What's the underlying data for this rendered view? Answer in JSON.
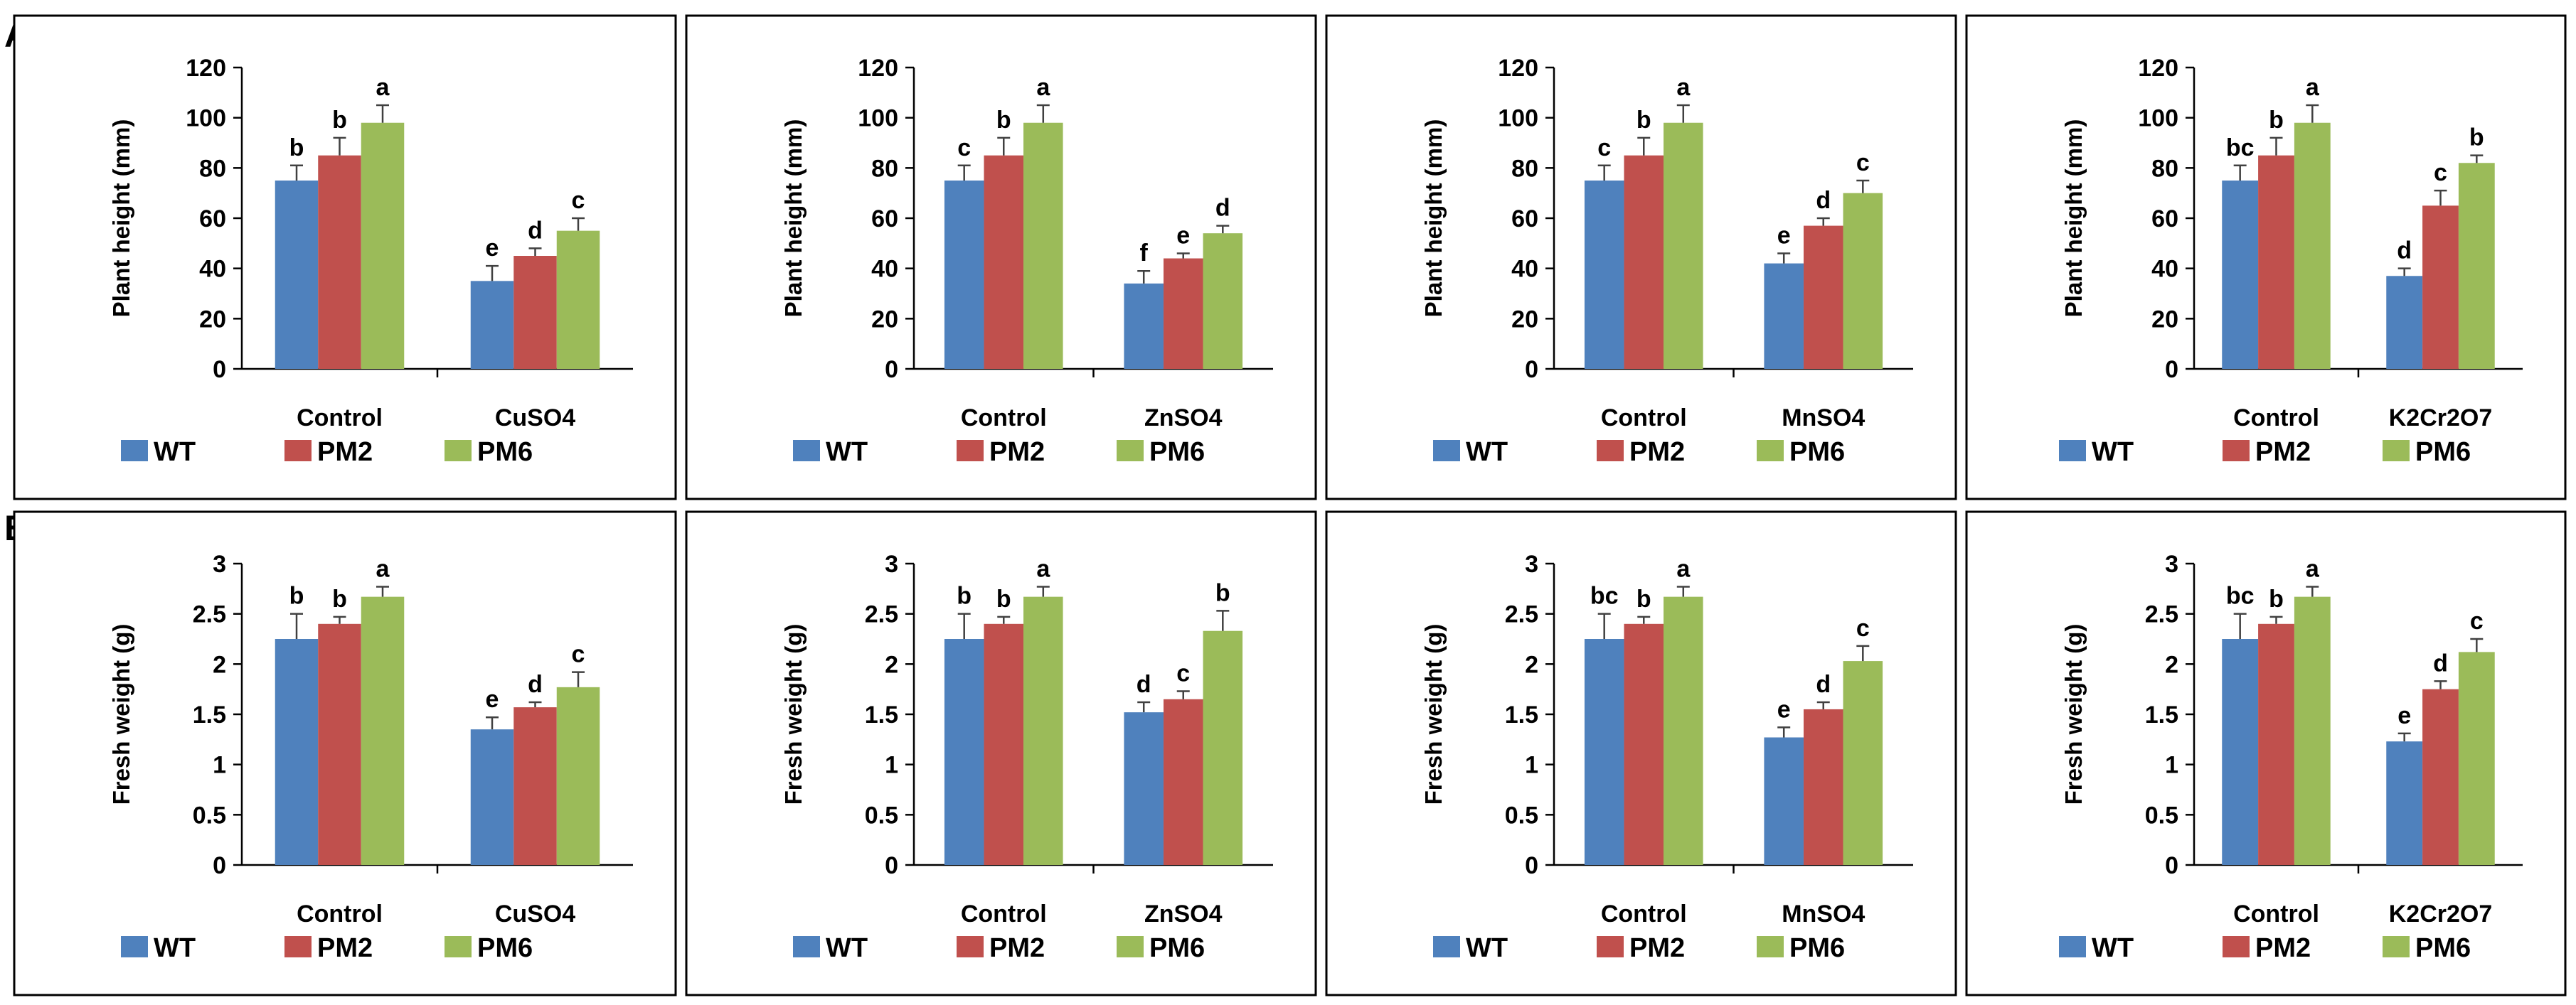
{
  "figure": {
    "row_labels": [
      "A",
      "B"
    ],
    "legend": [
      "WT",
      "PM2",
      "PM6"
    ],
    "series_colors": [
      "#4F81BD",
      "#C0504D",
      "#9BBB59"
    ],
    "error_bar_color": "#404040",
    "frame_color": "#000000"
  },
  "chart_data": [
    {
      "id": "A1",
      "type": "bar",
      "ylabel": "Plant height (mm)",
      "categories": [
        "Control",
        "CuSO4"
      ],
      "ylim": [
        0,
        120
      ],
      "yticks": [
        "0",
        "20",
        "40",
        "60",
        "80",
        "100",
        "120"
      ],
      "series": [
        {
          "name": "WT",
          "values": [
            75,
            35
          ],
          "errors": [
            6,
            6
          ],
          "letters": [
            "b",
            "e"
          ]
        },
        {
          "name": "PM2",
          "values": [
            85,
            45
          ],
          "errors": [
            7,
            3
          ],
          "letters": [
            "b",
            "d"
          ]
        },
        {
          "name": "PM6",
          "values": [
            98,
            55
          ],
          "errors": [
            7,
            5
          ],
          "letters": [
            "a",
            "c"
          ]
        }
      ]
    },
    {
      "id": "A2",
      "type": "bar",
      "ylabel": "Plant height (mm)",
      "categories": [
        "Control",
        "ZnSO4"
      ],
      "ylim": [
        0,
        120
      ],
      "yticks": [
        "0",
        "20",
        "40",
        "60",
        "80",
        "100",
        "120"
      ],
      "series": [
        {
          "name": "WT",
          "values": [
            75,
            34
          ],
          "errors": [
            6,
            5
          ],
          "letters": [
            "c",
            "f"
          ]
        },
        {
          "name": "PM2",
          "values": [
            85,
            44
          ],
          "errors": [
            7,
            2
          ],
          "letters": [
            "b",
            "e"
          ]
        },
        {
          "name": "PM6",
          "values": [
            98,
            54
          ],
          "errors": [
            7,
            3
          ],
          "letters": [
            "a",
            "d"
          ]
        }
      ]
    },
    {
      "id": "A3",
      "type": "bar",
      "ylabel": "Plant height (mm)",
      "categories": [
        "Control",
        "MnSO4"
      ],
      "ylim": [
        0,
        120
      ],
      "yticks": [
        "0",
        "20",
        "40",
        "60",
        "80",
        "100",
        "120"
      ],
      "series": [
        {
          "name": "WT",
          "values": [
            75,
            42
          ],
          "errors": [
            6,
            4
          ],
          "letters": [
            "c",
            "e"
          ]
        },
        {
          "name": "PM2",
          "values": [
            85,
            57
          ],
          "errors": [
            7,
            3
          ],
          "letters": [
            "b",
            "d"
          ]
        },
        {
          "name": "PM6",
          "values": [
            98,
            70
          ],
          "errors": [
            7,
            5
          ],
          "letters": [
            "a",
            "c"
          ]
        }
      ]
    },
    {
      "id": "A4",
      "type": "bar",
      "ylabel": "Plant height (mm)",
      "categories": [
        "Control",
        "K2Cr2O7"
      ],
      "ylim": [
        0,
        120
      ],
      "yticks": [
        "0",
        "20",
        "40",
        "60",
        "80",
        "100",
        "120"
      ],
      "series": [
        {
          "name": "WT",
          "values": [
            75,
            37
          ],
          "errors": [
            6,
            3
          ],
          "letters": [
            "bc",
            "d"
          ]
        },
        {
          "name": "PM2",
          "values": [
            85,
            65
          ],
          "errors": [
            7,
            6
          ],
          "letters": [
            "b",
            "c"
          ]
        },
        {
          "name": "PM6",
          "values": [
            98,
            82
          ],
          "errors": [
            7,
            3
          ],
          "letters": [
            "a",
            "b"
          ]
        }
      ]
    },
    {
      "id": "B1",
      "type": "bar",
      "ylabel": "Fresh weight (g)",
      "categories": [
        "Control",
        "CuSO4"
      ],
      "ylim": [
        0,
        3
      ],
      "yticks": [
        "0",
        "0.5",
        "1",
        "1.5",
        "2",
        "2.5",
        "3"
      ],
      "series": [
        {
          "name": "WT",
          "values": [
            2.25,
            1.35
          ],
          "errors": [
            0.25,
            0.12
          ],
          "letters": [
            "b",
            "e"
          ]
        },
        {
          "name": "PM2",
          "values": [
            2.4,
            1.57
          ],
          "errors": [
            0.07,
            0.05
          ],
          "letters": [
            "b",
            "d"
          ]
        },
        {
          "name": "PM6",
          "values": [
            2.67,
            1.77
          ],
          "errors": [
            0.1,
            0.15
          ],
          "letters": [
            "a",
            "c"
          ]
        }
      ]
    },
    {
      "id": "B2",
      "type": "bar",
      "ylabel": "Fresh weight (g)",
      "categories": [
        "Control",
        "ZnSO4"
      ],
      "ylim": [
        0,
        3
      ],
      "yticks": [
        "0",
        "0.5",
        "1",
        "1.5",
        "2",
        "2.5",
        "3"
      ],
      "series": [
        {
          "name": "WT",
          "values": [
            2.25,
            1.52
          ],
          "errors": [
            0.25,
            0.1
          ],
          "letters": [
            "b",
            "d"
          ]
        },
        {
          "name": "PM2",
          "values": [
            2.4,
            1.65
          ],
          "errors": [
            0.07,
            0.08
          ],
          "letters": [
            "b",
            "c"
          ]
        },
        {
          "name": "PM6",
          "values": [
            2.67,
            2.33
          ],
          "errors": [
            0.1,
            0.2
          ],
          "letters": [
            "a",
            "b"
          ]
        }
      ]
    },
    {
      "id": "B3",
      "type": "bar",
      "ylabel": "Fresh weight (g)",
      "categories": [
        "Control",
        "MnSO4"
      ],
      "ylim": [
        0,
        3
      ],
      "yticks": [
        "0",
        "0.5",
        "1",
        "1.5",
        "2",
        "2.5",
        "3"
      ],
      "series": [
        {
          "name": "WT",
          "values": [
            2.25,
            1.27
          ],
          "errors": [
            0.25,
            0.1
          ],
          "letters": [
            "bc",
            "e"
          ]
        },
        {
          "name": "PM2",
          "values": [
            2.4,
            1.55
          ],
          "errors": [
            0.07,
            0.07
          ],
          "letters": [
            "b",
            "d"
          ]
        },
        {
          "name": "PM6",
          "values": [
            2.67,
            2.03
          ],
          "errors": [
            0.1,
            0.15
          ],
          "letters": [
            "a",
            "c"
          ]
        }
      ]
    },
    {
      "id": "B4",
      "type": "bar",
      "ylabel": "Fresh weight (g)",
      "categories": [
        "Control",
        "K2Cr2O7"
      ],
      "ylim": [
        0,
        3
      ],
      "yticks": [
        "0",
        "0.5",
        "1",
        "1.5",
        "2",
        "2.5",
        "3"
      ],
      "series": [
        {
          "name": "WT",
          "values": [
            2.25,
            1.23
          ],
          "errors": [
            0.25,
            0.08
          ],
          "letters": [
            "bc",
            "e"
          ]
        },
        {
          "name": "PM2",
          "values": [
            2.4,
            1.75
          ],
          "errors": [
            0.07,
            0.08
          ],
          "letters": [
            "b",
            "d"
          ]
        },
        {
          "name": "PM6",
          "values": [
            2.67,
            2.12
          ],
          "errors": [
            0.1,
            0.13
          ],
          "letters": [
            "a",
            "c"
          ]
        }
      ]
    }
  ]
}
